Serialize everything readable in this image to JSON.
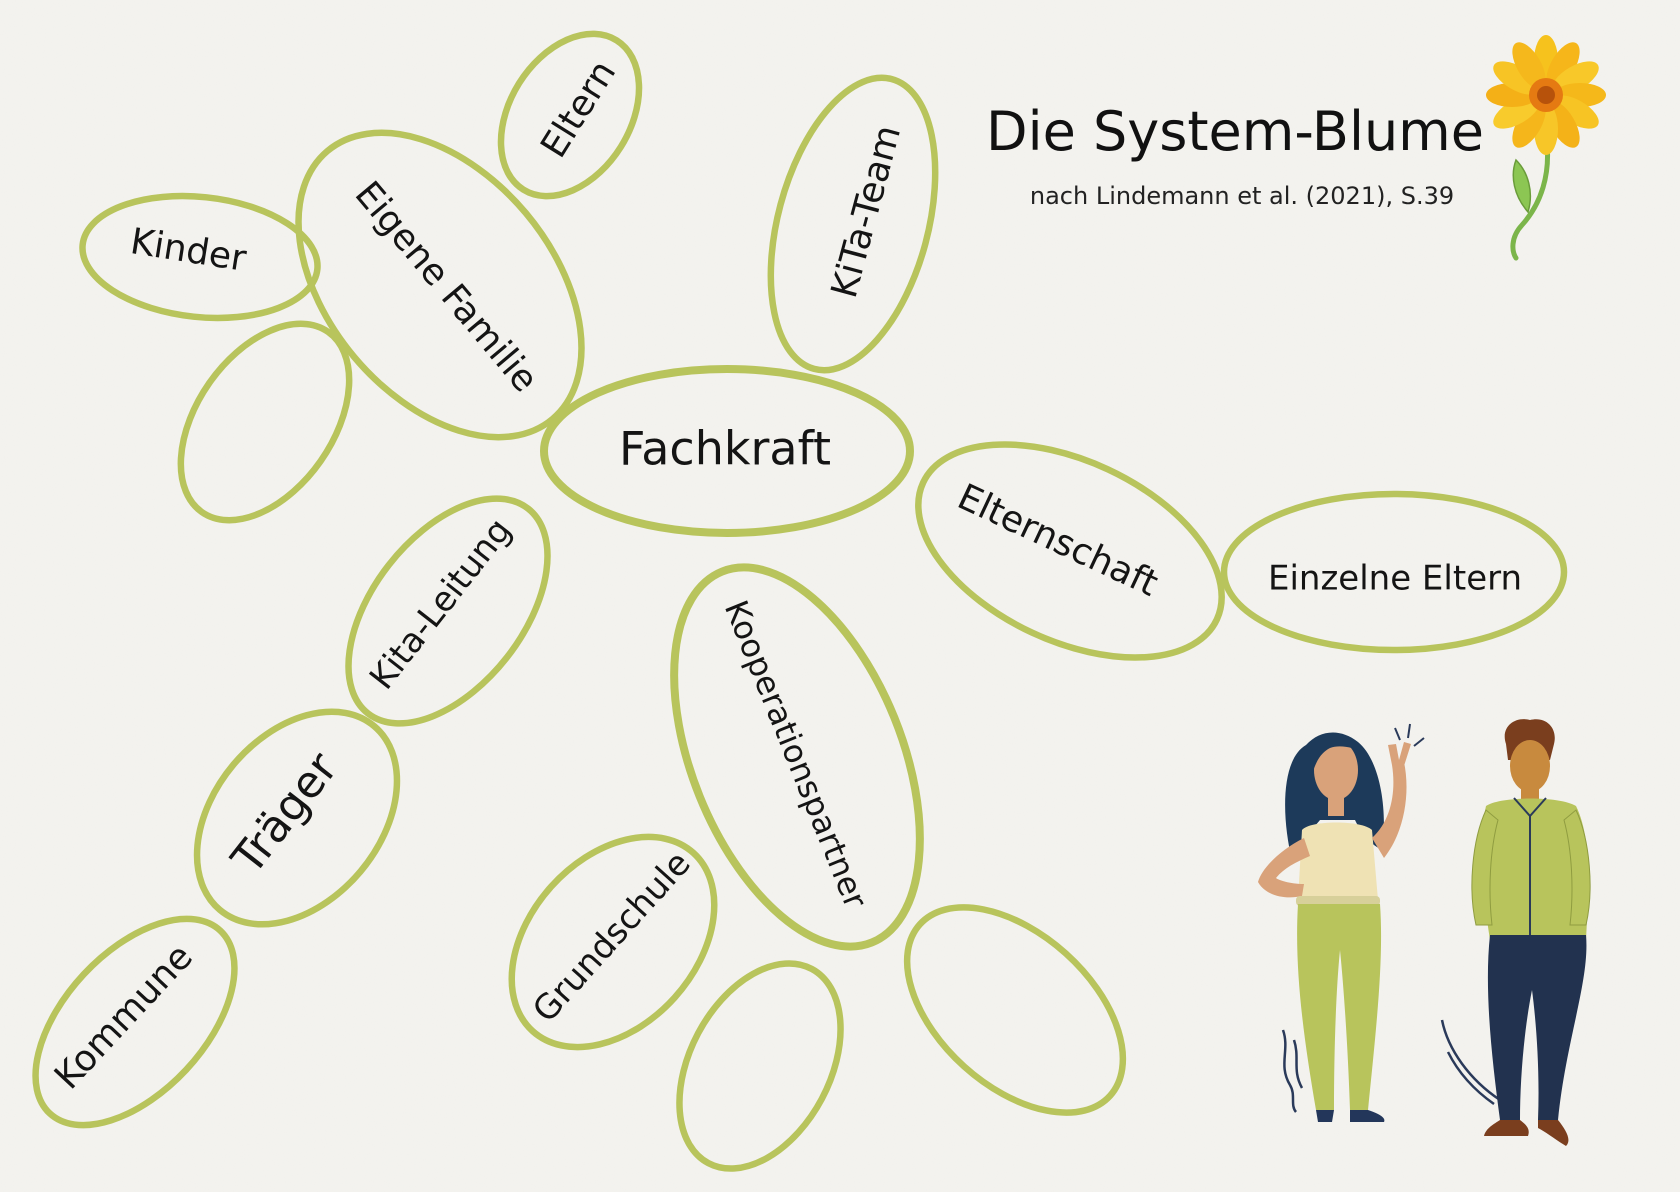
{
  "header": {
    "title": "Die System-Blume",
    "subtitle": "nach Lindemann et al. (2021), S.39"
  },
  "nodes": {
    "center": "Fachkraft",
    "eigene_familie": "Eigene Familie",
    "eltern": "Eltern",
    "kinder": "Kinder",
    "empty_left": "",
    "kita_team": "KiTa-Team",
    "elternschaft": "Elternschaft",
    "einzelne_eltern": "Einzelne Eltern",
    "kita_leitung": "Kita-Leitung",
    "traeger": "Träger",
    "kommune": "Kommune",
    "kooperationspartner": "Kooperationspartner",
    "grundschule": "Grundschule",
    "empty_bottom_left": "",
    "empty_bottom_right": ""
  },
  "colors": {
    "petal": "#b8c45c",
    "text": "#141414",
    "background": "#f4f3ef"
  },
  "icons": [
    "flower-icon",
    "woman-figure-icon",
    "man-figure-icon"
  ]
}
